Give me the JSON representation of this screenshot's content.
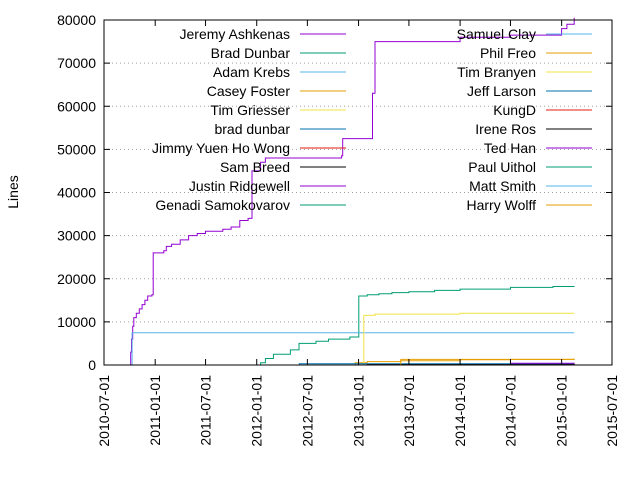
{
  "chart_data": {
    "type": "line",
    "title": "",
    "xlabel": "",
    "ylabel": "Lines",
    "xlim": [
      "2010-07-01",
      "2015-07-01"
    ],
    "ylim": [
      0,
      80000
    ],
    "y_ticks": [
      0,
      10000,
      20000,
      30000,
      40000,
      50000,
      60000,
      70000,
      80000
    ],
    "x_ticks": [
      "2010-07-01",
      "2011-01-01",
      "2011-07-01",
      "2012-01-01",
      "2012-07-01",
      "2013-01-01",
      "2013-07-01",
      "2014-01-01",
      "2014-07-01",
      "2015-01-01",
      "2015-07-01"
    ],
    "grid": "horizontal dotted",
    "legend_placement": "top, two columns",
    "series": [
      {
        "name": "Jeremy Ashkenas",
        "color": "#9400d3",
        "points": [
          [
            "2010-09-30",
            0
          ],
          [
            "2010-10-05",
            3000
          ],
          [
            "2010-10-08",
            6000
          ],
          [
            "2010-10-12",
            9000
          ],
          [
            "2010-10-16",
            11000
          ],
          [
            "2010-10-25",
            12000
          ],
          [
            "2010-11-05",
            13000
          ],
          [
            "2010-11-15",
            14000
          ],
          [
            "2010-11-25",
            15000
          ],
          [
            "2010-12-05",
            16000
          ],
          [
            "2010-12-20",
            16300
          ],
          [
            "2010-12-25",
            26000
          ],
          [
            "2011-02-01",
            26500
          ],
          [
            "2011-02-10",
            27500
          ],
          [
            "2011-03-01",
            28000
          ],
          [
            "2011-04-01",
            29000
          ],
          [
            "2011-05-01",
            30000
          ],
          [
            "2011-06-01",
            30500
          ],
          [
            "2011-07-01",
            31000
          ],
          [
            "2011-09-01",
            31500
          ],
          [
            "2011-10-01",
            32000
          ],
          [
            "2011-11-01",
            33500
          ],
          [
            "2011-12-01",
            34000
          ],
          [
            "2011-12-15",
            45000
          ],
          [
            "2012-01-15",
            47000
          ],
          [
            "2012-02-01",
            48000
          ],
          [
            "2012-11-01",
            48500
          ],
          [
            "2012-11-05",
            52500
          ],
          [
            "2013-02-15",
            52500
          ],
          [
            "2013-02-20",
            63000
          ],
          [
            "2013-03-01",
            75000
          ],
          [
            "2014-01-01",
            76000
          ],
          [
            "2014-07-01",
            76500
          ],
          [
            "2015-01-01",
            78000
          ],
          [
            "2015-01-20",
            79000
          ],
          [
            "2015-02-15",
            80500
          ]
        ]
      },
      {
        "name": "Brad Dunbar",
        "color": "#009e73",
        "points": [
          [
            "2010-09-30",
            0
          ],
          [
            "2011-12-01",
            0
          ],
          [
            "2012-01-15",
            500
          ],
          [
            "2012-02-01",
            1500
          ],
          [
            "2012-03-01",
            2500
          ],
          [
            "2012-05-01",
            3500
          ],
          [
            "2012-06-01",
            5000
          ],
          [
            "2012-08-01",
            5500
          ],
          [
            "2012-09-15",
            6000
          ],
          [
            "2012-12-01",
            6500
          ],
          [
            "2013-01-01",
            6500
          ],
          [
            "2013-01-02",
            16000
          ],
          [
            "2013-02-01",
            16300
          ],
          [
            "2013-03-15",
            16500
          ],
          [
            "2013-05-01",
            16800
          ],
          [
            "2013-07-01",
            17000
          ],
          [
            "2013-10-01",
            17300
          ],
          [
            "2014-01-01",
            17600
          ],
          [
            "2014-07-01",
            18000
          ],
          [
            "2014-12-01",
            18200
          ],
          [
            "2015-02-15",
            18300
          ]
        ]
      },
      {
        "name": "Adam Krebs",
        "color": "#56b4e9",
        "points": [
          [
            "2010-09-30",
            0
          ],
          [
            "2010-10-10",
            7500
          ],
          [
            "2015-02-15",
            7500
          ]
        ]
      },
      {
        "name": "Casey Foster",
        "color": "#e69f00",
        "points": [
          [
            "2010-09-30",
            0
          ],
          [
            "2012-12-01",
            0
          ],
          [
            "2012-12-20",
            500
          ],
          [
            "2013-02-01",
            800
          ],
          [
            "2013-06-01",
            1000
          ],
          [
            "2014-01-01",
            1200
          ],
          [
            "2014-07-01",
            1300
          ],
          [
            "2015-02-15",
            1500
          ]
        ]
      },
      {
        "name": "Tim Griesser",
        "color": "#f0e442",
        "points": [
          [
            "2010-09-30",
            0
          ],
          [
            "2013-01-10",
            0
          ],
          [
            "2013-01-20",
            11500
          ],
          [
            "2013-03-01",
            11800
          ],
          [
            "2014-01-01",
            12000
          ],
          [
            "2015-02-15",
            12000
          ]
        ]
      },
      {
        "name": "brad dunbar",
        "color": "#0072b2",
        "points": [
          [
            "2010-09-30",
            0
          ],
          [
            "2012-06-01",
            0
          ],
          [
            "2012-06-02",
            300
          ],
          [
            "2015-02-15",
            300
          ]
        ]
      },
      {
        "name": "Jimmy Yuen Ho Wong",
        "color": "#e51e10",
        "points": [
          [
            "2010-09-30",
            0
          ],
          [
            "2015-02-15",
            200
          ]
        ]
      },
      {
        "name": "Sam Breed",
        "color": "#000000",
        "points": [
          [
            "2010-09-30",
            0
          ],
          [
            "2013-02-01",
            100
          ],
          [
            "2015-02-15",
            200
          ]
        ]
      },
      {
        "name": "Justin Ridgewell",
        "color": "#9400d3",
        "points": [
          [
            "2010-09-30",
            0
          ],
          [
            "2014-06-01",
            0
          ],
          [
            "2014-07-01",
            400
          ],
          [
            "2015-02-15",
            500
          ]
        ]
      },
      {
        "name": "Genadi Samokovarov",
        "color": "#009e73",
        "points": [
          [
            "2010-09-30",
            0
          ],
          [
            "2015-02-15",
            0
          ]
        ]
      },
      {
        "name": "Samuel Clay",
        "color": "#56b4e9",
        "points": [
          [
            "2010-09-30",
            0
          ],
          [
            "2015-02-15",
            0
          ]
        ]
      },
      {
        "name": "Phil Freo",
        "color": "#e69f00",
        "points": [
          [
            "2010-09-30",
            0
          ],
          [
            "2013-06-01",
            0
          ],
          [
            "2013-06-02",
            1300
          ],
          [
            "2015-02-15",
            1300
          ]
        ]
      },
      {
        "name": "Tim Branyen",
        "color": "#f0e442",
        "points": [
          [
            "2010-09-30",
            0
          ],
          [
            "2015-02-15",
            0
          ]
        ]
      },
      {
        "name": "Jeff Larson",
        "color": "#0072b2",
        "points": [
          [
            "2010-09-30",
            0
          ],
          [
            "2015-02-15",
            0
          ]
        ]
      },
      {
        "name": "KungD",
        "color": "#e51e10",
        "points": [
          [
            "2010-09-30",
            0
          ],
          [
            "2015-02-15",
            0
          ]
        ]
      },
      {
        "name": "Irene Ros",
        "color": "#000000",
        "points": [
          [
            "2010-09-30",
            0
          ],
          [
            "2015-02-15",
            0
          ]
        ]
      },
      {
        "name": "Ted Han",
        "color": "#9400d3",
        "points": [
          [
            "2010-09-30",
            0
          ],
          [
            "2015-02-15",
            0
          ]
        ]
      },
      {
        "name": "Paul Uithol",
        "color": "#009e73",
        "points": [
          [
            "2010-09-30",
            0
          ],
          [
            "2015-02-15",
            0
          ]
        ]
      },
      {
        "name": "Matt Smith",
        "color": "#56b4e9",
        "points": [
          [
            "2010-09-30",
            0
          ],
          [
            "2015-02-15",
            0
          ]
        ]
      },
      {
        "name": "Harry Wolff",
        "color": "#e69f00",
        "points": [
          [
            "2010-09-30",
            0
          ],
          [
            "2015-02-15",
            0
          ]
        ]
      }
    ]
  }
}
